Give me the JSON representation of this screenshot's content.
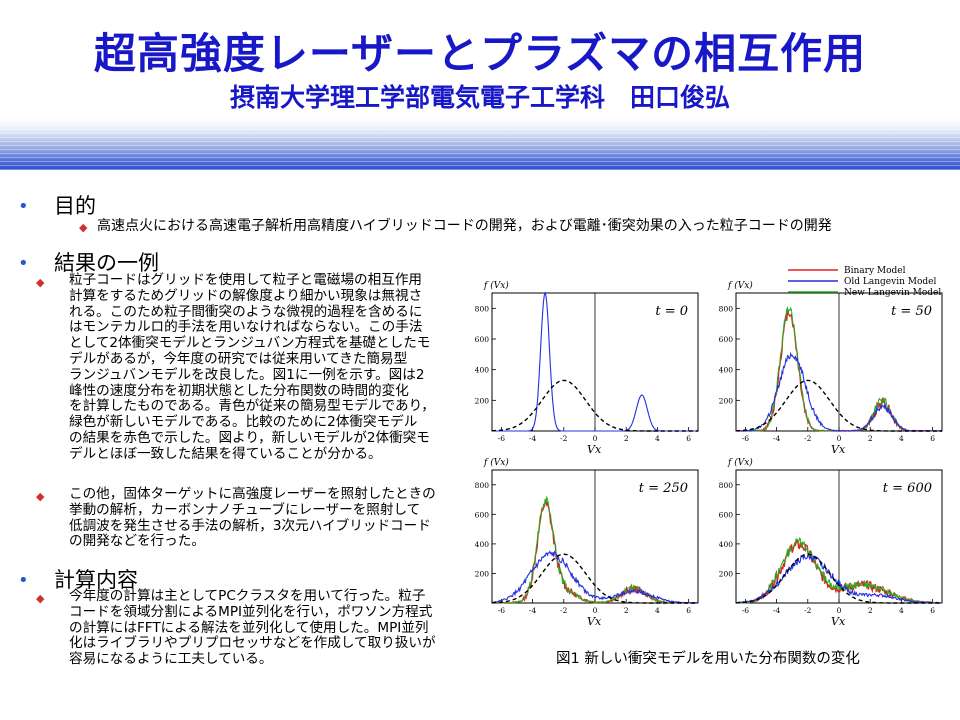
{
  "slide": {
    "title": "超高強度レーザーとプラズマの相互作用",
    "subtitle": "摂南大学理工学部電気電子工学科　田口俊弘"
  },
  "sections": {
    "purpose": {
      "heading": "目的",
      "text": "高速点火における高速電子解析用高精度ハイブリッドコードの開発，および電離･衝突効果の入った粒子コードの開発"
    },
    "results": {
      "heading": "結果の一例",
      "item1_lines": [
        "粒子コードはグリッドを使用して粒子と電磁場の相互作用",
        "計算をするためグリッドの解像度より細かい現象は無視さ",
        "れる。このため粒子間衝突のような微視的過程を含めるに",
        "はモンテカルロ的手法を用いなければならない。この手法",
        "として2体衝突モデルとランジュバン方程式を基礎としたモ",
        "デルがあるが，今年度の研究では従来用いてきた簡易型",
        "ランジュバンモデルを改良した。図1に一例を示す。図は2",
        "峰性の速度分布を初期状態とした分布関数の時間的変化",
        "を計算したものである。青色が従来の簡易型モデルであり，",
        "緑色が新しいモデルである。比較のために2体衝突モデル",
        "の結果を赤色で示した。図より，新しいモデルが2体衝突モ",
        "デルとほぼ一致した結果を得ていることが分かる。"
      ],
      "item2_lines": [
        "この他，固体ターゲットに高強度レーザーを照射したときの",
        "挙動の解析，カーボンナノチューブにレーザーを照射して",
        "低調波を発生させる手法の解析，3次元ハイブリッドコード",
        "の開発などを行った。"
      ]
    },
    "computation": {
      "heading": "計算内容",
      "lines": [
        "今年度の計算は主としてPCクラスタを用いて行った。粒子",
        "コードを領域分割によるMPI並列化を行い，ポワソン方程式",
        "の計算にはFFTによる解法を並列化して使用した。MPI並列",
        "化はライブラリやプリプロセッサなどを作成して取り扱いが",
        "容易になるように工夫している。"
      ]
    }
  },
  "figure": {
    "caption": "図1 新しい衝突モデルを用いた分布関数の変化",
    "ylabel": "f (Vx)",
    "xlabel": "Vx",
    "legend": [
      "Binary Model",
      "Old Langevin Model",
      "New Langevin Model"
    ],
    "colors": {
      "binary": "#e02020",
      "old": "#2030e0",
      "new": "#20b020",
      "initial": "#000000"
    },
    "panels": [
      {
        "label": "t = 0"
      },
      {
        "label": "t = 50"
      },
      {
        "label": "t = 250"
      },
      {
        "label": "t = 600"
      }
    ],
    "xticks": [
      "-6",
      "-4",
      "-2",
      "0",
      "2",
      "4",
      "6"
    ],
    "yticks": [
      "0",
      "200",
      "400",
      "600",
      "800"
    ]
  }
}
